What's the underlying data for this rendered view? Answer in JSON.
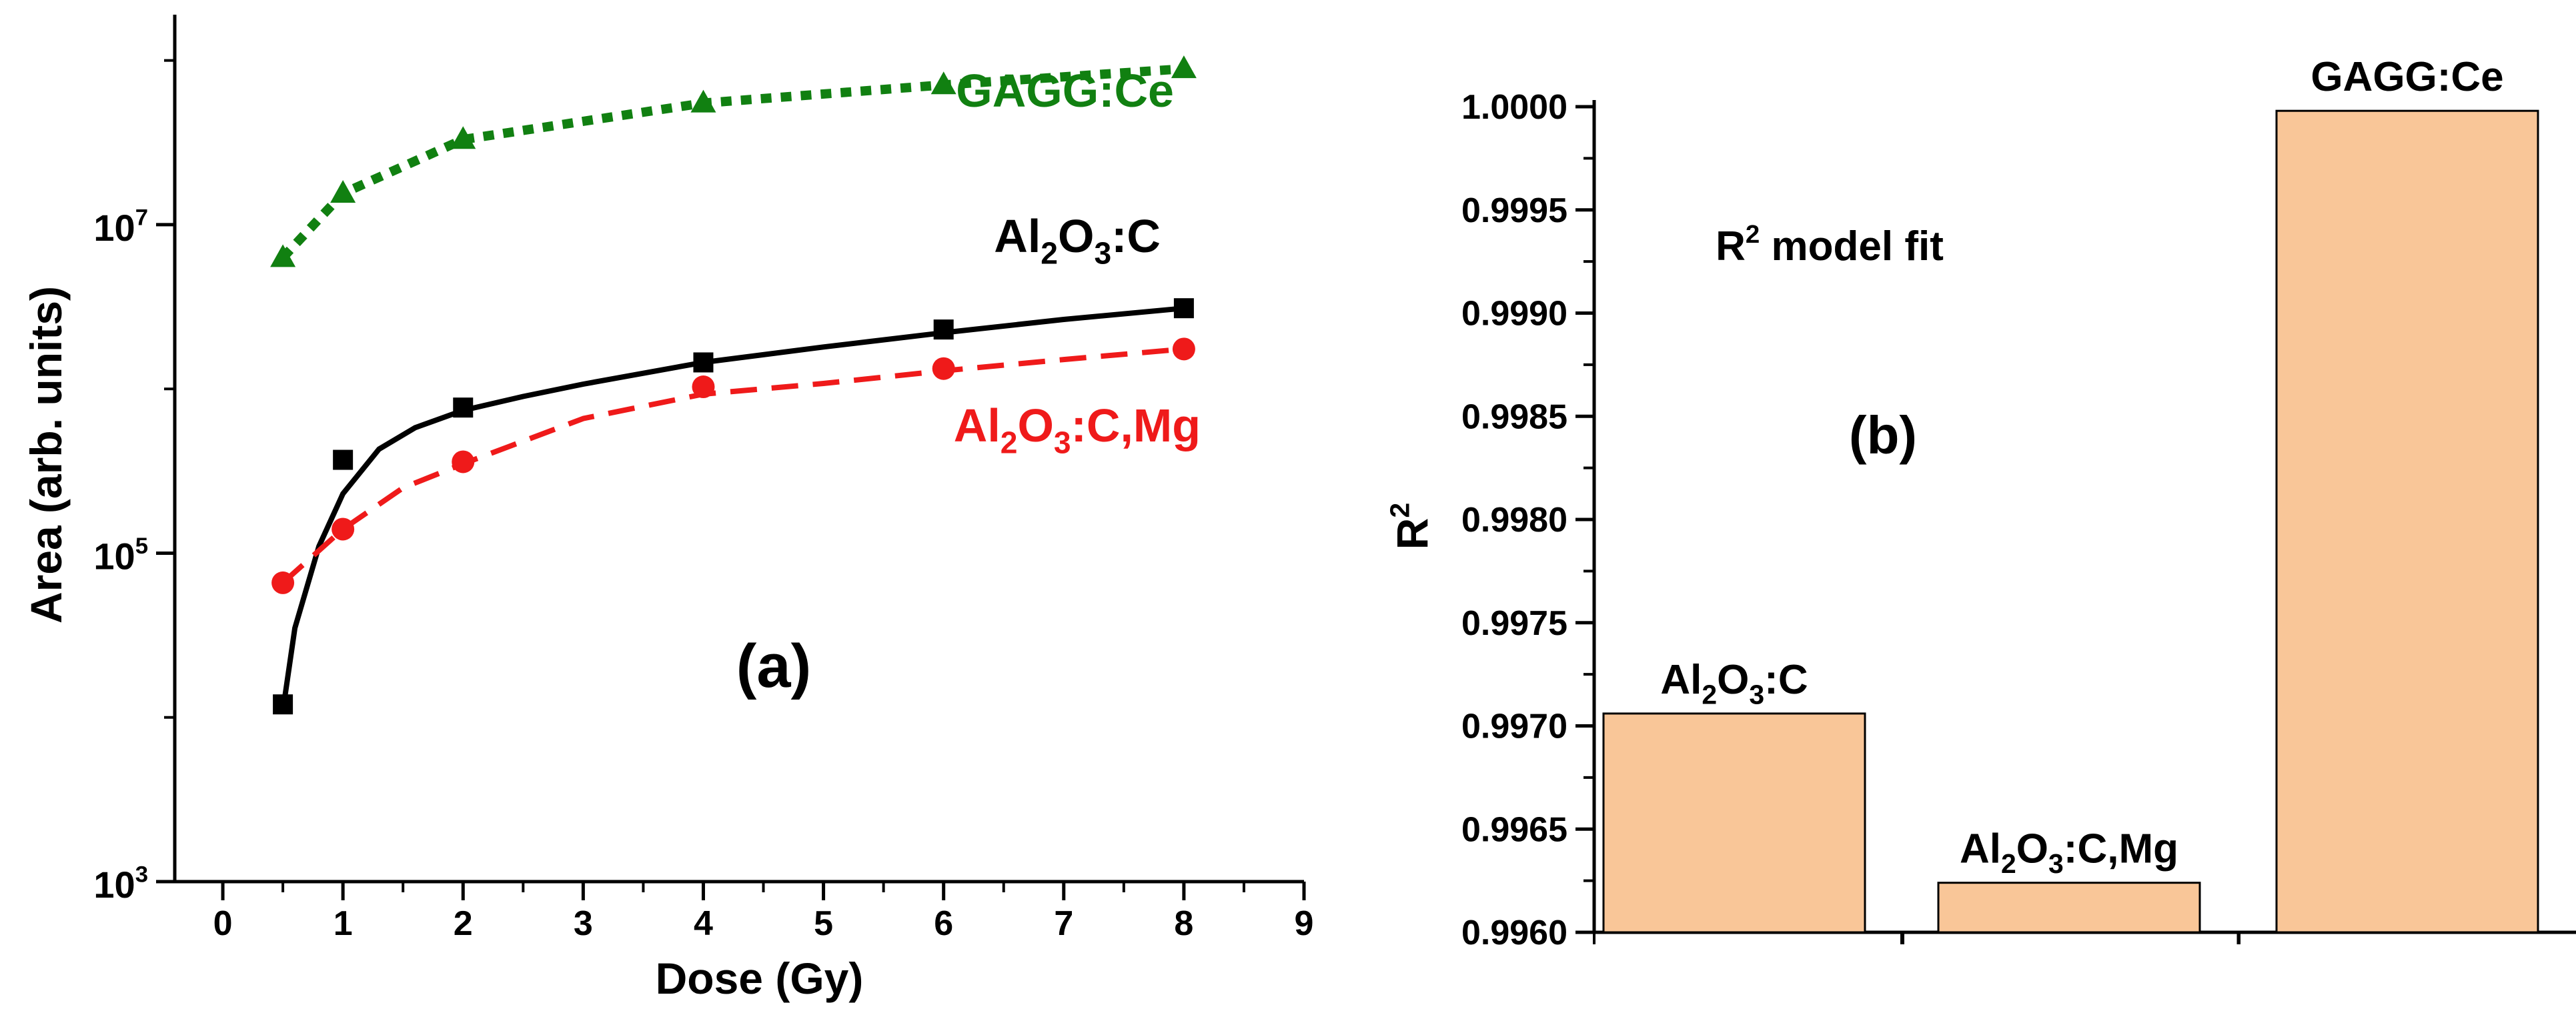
{
  "chart_data": [
    {
      "type": "line",
      "panel_label": "(a)",
      "xlabel": "Dose (Gy)",
      "ylabel": "Area (arb. units)",
      "yscale": "log",
      "xlim": [
        -0.4,
        9
      ],
      "ylim": [
        1000,
        190000000
      ],
      "x_ticks": [
        "0",
        "1",
        "2",
        "3",
        "4",
        "5",
        "6",
        "7",
        "8",
        "9"
      ],
      "y_ticks": [
        {
          "base": "10",
          "exp": "3",
          "value": 1000
        },
        {
          "base": "10",
          "exp": "5",
          "value": 100000
        },
        {
          "base": "10",
          "exp": "7",
          "value": 10000000
        }
      ],
      "series": [
        {
          "name": "GAGG:Ce",
          "name_parts": [
            "GAGG:Ce"
          ],
          "color": "#118011",
          "marker": "triangle",
          "line": "dotted",
          "x": [
            0.5,
            1,
            2,
            4,
            6,
            8
          ],
          "y": [
            6300000,
            15500000,
            33000000,
            55000000,
            71000000,
            89000000
          ],
          "fit": [
            [
              0.5,
              6300000
            ],
            [
              1,
              15500000
            ],
            [
              2,
              33000000
            ],
            [
              4,
              55000000
            ],
            [
              6,
              71000000
            ],
            [
              8,
              89000000
            ]
          ]
        },
        {
          "name": "Al2O3:C",
          "name_parts": [
            "Al",
            "2",
            "O",
            "3",
            ":C"
          ],
          "color": "#000000",
          "marker": "square",
          "line": "solid",
          "x": [
            0.5,
            1,
            2,
            4,
            6,
            8
          ],
          "y": [
            12000,
            370000,
            770000,
            1450000,
            2300000,
            3100000
          ],
          "fit": [
            [
              0.5,
              11000
            ],
            [
              0.6,
              35000
            ],
            [
              0.8,
              110000
            ],
            [
              1,
              230000
            ],
            [
              1.3,
              430000
            ],
            [
              1.6,
              580000
            ],
            [
              2,
              740000
            ],
            [
              2.5,
              900000
            ],
            [
              3,
              1070000
            ],
            [
              4,
              1450000
            ],
            [
              5,
              1800000
            ],
            [
              6,
              2200000
            ],
            [
              7,
              2650000
            ],
            [
              8,
              3100000
            ]
          ]
        },
        {
          "name": "Al2O3:C,Mg",
          "name_parts": [
            "Al",
            "2",
            "O",
            "3",
            ":C,Mg"
          ],
          "color": "#ef1a1a",
          "marker": "circle",
          "line": "dashed",
          "x": [
            0.5,
            1,
            2,
            4,
            6,
            8
          ],
          "y": [
            66000,
            140000,
            360000,
            1030000,
            1330000,
            1750000
          ],
          "fit": [
            [
              0.5,
              66000
            ],
            [
              1,
              140000
            ],
            [
              1.5,
              250000
            ],
            [
              2,
              350000
            ],
            [
              3,
              660000
            ],
            [
              4,
              930000
            ],
            [
              5,
              1080000
            ],
            [
              6,
              1290000
            ],
            [
              7,
              1510000
            ],
            [
              8,
              1750000
            ]
          ]
        }
      ]
    },
    {
      "type": "bar",
      "panel_label": "(b)",
      "annotation_base": "R",
      "annotation_sup": "2",
      "annotation_rest": " model fit",
      "ylabel_base": "R",
      "ylabel_sup": "2",
      "ylim": [
        0.996,
        1.0
      ],
      "y_ticks": [
        "0.9960",
        "0.9965",
        "0.9970",
        "0.9975",
        "0.9980",
        "0.9985",
        "0.9990",
        "0.9995",
        "1.0000"
      ],
      "bar_color": "#f9c698",
      "categories": [
        {
          "name": "Al2O3:C",
          "name_parts": [
            "Al",
            "2",
            "O",
            "3",
            ":C"
          ]
        },
        {
          "name": "Al2O3:C,Mg",
          "name_parts": [
            "Al",
            "2",
            "O",
            "3",
            ":C,Mg"
          ]
        },
        {
          "name": "GAGG:Ce",
          "name_parts": [
            "GAGG:Ce"
          ]
        }
      ],
      "values": [
        0.99706,
        0.99624,
        0.99998
      ]
    }
  ]
}
